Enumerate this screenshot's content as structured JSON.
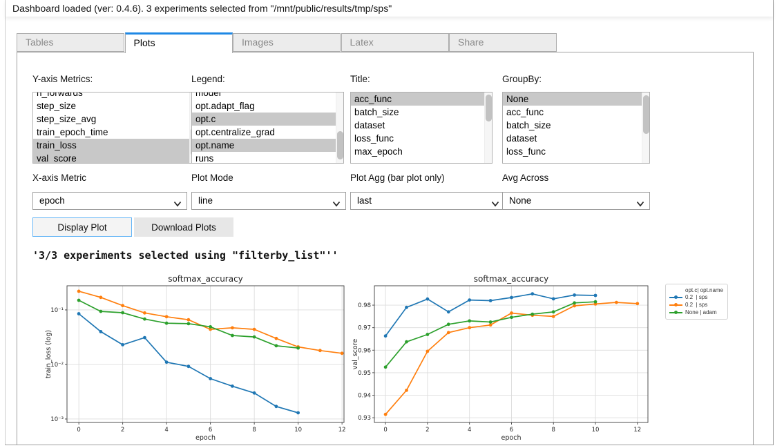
{
  "colors": {
    "accent_blue": "#1e88e5",
    "selection_gray": "#c8c8c8",
    "series_blue": "#1f77b4",
    "series_orange": "#ff7f0e",
    "series_green": "#2ca02c"
  },
  "status_bar": {
    "text": "Dashboard loaded (ver: 0.4.6). 3 experiments selected from \"/mnt/public/results/tmp/sps\""
  },
  "tabs": [
    {
      "label": "Tables",
      "active": false
    },
    {
      "label": "Plots",
      "active": true
    },
    {
      "label": "Images",
      "active": false
    },
    {
      "label": "Latex",
      "active": false
    },
    {
      "label": "Share",
      "active": false
    }
  ],
  "selectors": [
    {
      "label": "Y-axis Metrics:",
      "scrolled": true,
      "scrollbar": {
        "top_pct": 50,
        "height_pct": 40
      },
      "items": [
        {
          "text": "n_forwards",
          "selected": false
        },
        {
          "text": "step_size",
          "selected": false
        },
        {
          "text": "step_size_avg",
          "selected": false
        },
        {
          "text": "train_epoch_time",
          "selected": false
        },
        {
          "text": "train_loss",
          "selected": true
        },
        {
          "text": "val_score",
          "selected": true
        }
      ]
    },
    {
      "label": "Legend:",
      "scrolled": true,
      "scrollbar": {
        "top_pct": 55,
        "height_pct": 40
      },
      "items": [
        {
          "text": "model",
          "selected": false
        },
        {
          "text": "opt.adapt_flag",
          "selected": false
        },
        {
          "text": "opt.c",
          "selected": true
        },
        {
          "text": "opt.centralize_grad",
          "selected": false
        },
        {
          "text": "opt.name",
          "selected": true
        },
        {
          "text": "runs",
          "selected": false
        }
      ]
    },
    {
      "label": "Title:",
      "scrolled": false,
      "scrollbar": {
        "top_pct": 3,
        "height_pct": 38
      },
      "items": [
        {
          "text": "acc_func",
          "selected": true
        },
        {
          "text": "batch_size",
          "selected": false
        },
        {
          "text": "dataset",
          "selected": false
        },
        {
          "text": "loss_func",
          "selected": false
        },
        {
          "text": "max_epoch",
          "selected": false
        }
      ]
    },
    {
      "label": "GroupBy:",
      "scrolled": false,
      "scrollbar": {
        "top_pct": 4,
        "height_pct": 55
      },
      "items": [
        {
          "text": "None",
          "selected": true
        },
        {
          "text": "acc_func",
          "selected": false
        },
        {
          "text": "batch_size",
          "selected": false
        },
        {
          "text": "dataset",
          "selected": false
        },
        {
          "text": "loss_func",
          "selected": false
        }
      ]
    }
  ],
  "dropdowns": [
    {
      "label": "X-axis Metric",
      "value": "epoch"
    },
    {
      "label": "Plot Mode",
      "value": "line"
    },
    {
      "label": "Plot Agg (bar plot only)",
      "value": "last"
    },
    {
      "label": "Avg Across",
      "value": "None"
    }
  ],
  "buttons": {
    "display_plot": "Display Plot",
    "download_plots": "Download Plots"
  },
  "message": "'3/3 experiments selected using \"filterby_list\"''",
  "chart_data": [
    {
      "type": "line",
      "title": "softmax_accuracy",
      "xlabel": "epoch",
      "ylabel": "train_loss (log)",
      "yscale": "log",
      "xlim": [
        -0.54,
        12.09
      ],
      "ylim": [
        0.000864,
        0.277
      ],
      "x_ticks": [
        0,
        2,
        4,
        6,
        8,
        10,
        12
      ],
      "y_ticks": [
        0.1,
        0.01,
        0.001
      ],
      "y_tick_labels": [
        "10⁻¹",
        "10⁻²",
        "10⁻³"
      ],
      "grid": true,
      "series": [
        {
          "name": "0.2  | sps",
          "color": "#1f77b4",
          "x": [
            0,
            1,
            2,
            3,
            4,
            5,
            6,
            7,
            8,
            9,
            10
          ],
          "y": [
            0.085,
            0.04,
            0.023,
            0.031,
            0.011,
            0.0092,
            0.0055,
            0.004,
            0.003,
            0.0017,
            0.0013
          ]
        },
        {
          "name": "0.2  | sps",
          "color": "#ff7f0e",
          "x": [
            0,
            1,
            2,
            3,
            4,
            5,
            6,
            7,
            8,
            9,
            10,
            11,
            12
          ],
          "y": [
            0.22,
            0.17,
            0.12,
            0.088,
            0.075,
            0.066,
            0.044,
            0.047,
            0.044,
            0.03,
            0.021,
            0.018,
            0.016
          ]
        },
        {
          "name": "None | adam",
          "color": "#2ca02c",
          "x": [
            0,
            1,
            2,
            3,
            4,
            5,
            6,
            7,
            8,
            9,
            10
          ],
          "y": [
            0.15,
            0.094,
            0.089,
            0.068,
            0.057,
            0.056,
            0.049,
            0.034,
            0.032,
            0.022,
            0.02
          ]
        }
      ]
    },
    {
      "type": "line",
      "title": "softmax_accuracy",
      "xlabel": "epoch",
      "ylabel": "val_score",
      "yscale": "linear",
      "xlim": [
        -0.53,
        12.5
      ],
      "ylim": [
        0.9279,
        0.9886
      ],
      "x_ticks": [
        0,
        2,
        4,
        6,
        8,
        10,
        12
      ],
      "y_ticks": [
        0.93,
        0.94,
        0.95,
        0.96,
        0.97,
        0.98
      ],
      "y_tick_labels": [
        "0.93",
        "0.94",
        "0.95",
        "0.96",
        "0.97",
        "0.98"
      ],
      "grid": true,
      "series": [
        {
          "name": "0.2  | sps",
          "color": "#1f77b4",
          "x": [
            0,
            1,
            2,
            3,
            4,
            5,
            6,
            7,
            8,
            9,
            10
          ],
          "y": [
            0.9663,
            0.979,
            0.9827,
            0.977,
            0.9823,
            0.982,
            0.9834,
            0.985,
            0.9828,
            0.9845,
            0.9843
          ]
        },
        {
          "name": "0.2  | sps",
          "color": "#ff7f0e",
          "x": [
            0,
            1,
            2,
            3,
            4,
            5,
            6,
            7,
            8,
            9,
            10,
            11,
            12
          ],
          "y": [
            0.9315,
            0.9422,
            0.9595,
            0.9678,
            0.97,
            0.9712,
            0.9765,
            0.9755,
            0.975,
            0.9797,
            0.9805,
            0.9812,
            0.9807
          ]
        },
        {
          "name": "None | adam",
          "color": "#2ca02c",
          "x": [
            0,
            1,
            2,
            3,
            4,
            5,
            6,
            7,
            8,
            9,
            10
          ],
          "y": [
            0.9525,
            0.9637,
            0.967,
            0.9715,
            0.973,
            0.9725,
            0.9746,
            0.976,
            0.977,
            0.981,
            0.9815
          ]
        }
      ]
    }
  ],
  "plot_legend": {
    "header": "opt.c| opt.name",
    "entries": [
      {
        "label": "0.2  | sps",
        "color": "#1f77b4"
      },
      {
        "label": "0.2  | sps",
        "color": "#ff7f0e"
      },
      {
        "label": "None | adam",
        "color": "#2ca02c"
      }
    ]
  }
}
